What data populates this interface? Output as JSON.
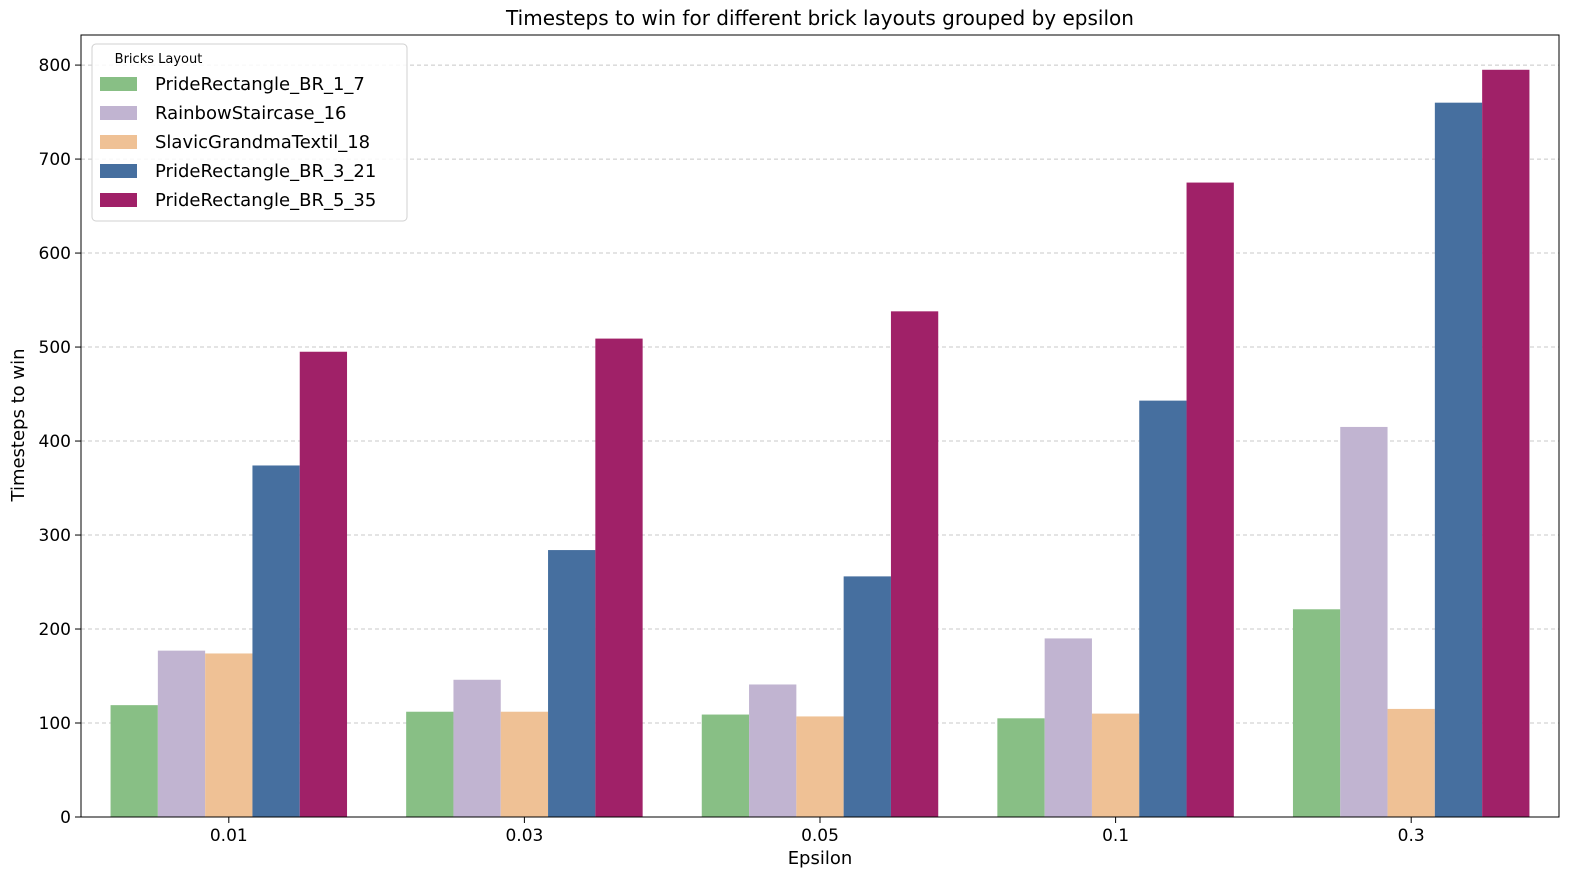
{
  "chart_data": {
    "type": "bar",
    "title": "Timesteps to win for different brick layouts grouped by epsilon",
    "xlabel": "Epsilon",
    "ylabel": "Timesteps to win",
    "categories": [
      "0.01",
      "0.03",
      "0.05",
      "0.1",
      "0.3"
    ],
    "ylim": [
      0,
      832
    ],
    "yticks": [
      0,
      100,
      200,
      300,
      400,
      500,
      600,
      700,
      800
    ],
    "grid": "horizontal dashed",
    "legend": {
      "title": "Bricks Layout",
      "placement": "top-left"
    },
    "series": [
      {
        "name": "PrideRectangle_BR_1_7",
        "color": "#88bf85",
        "values": [
          119,
          112,
          109,
          105,
          221
        ]
      },
      {
        "name": "RainbowStaircase_16",
        "color": "#c1b4d1",
        "values": [
          177,
          146,
          141,
          190,
          415
        ]
      },
      {
        "name": "SlavicGrandmaTextil_18",
        "color": "#efc195",
        "values": [
          174,
          112,
          107,
          110,
          115
        ]
      },
      {
        "name": "PrideRectangle_BR_3_21",
        "color": "#466f9f",
        "values": [
          374,
          284,
          256,
          443,
          760
        ]
      },
      {
        "name": "PrideRectangle_BR_5_35",
        "color": "#a02168",
        "values": [
          495,
          509,
          538,
          675,
          795
        ]
      }
    ]
  }
}
